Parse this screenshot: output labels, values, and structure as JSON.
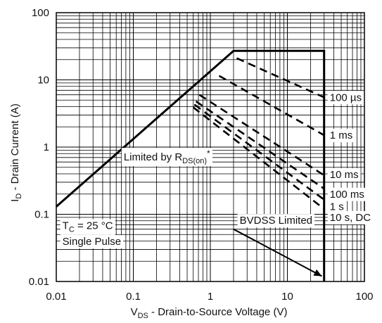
{
  "chart_data": {
    "type": "line",
    "title": "",
    "xlabel": {
      "main": "V",
      "sub": "DS",
      "rest": " - Drain-to-Source Voltage (V)"
    },
    "ylabel": {
      "main": "I",
      "sub": "D",
      "rest": " - Drain Current (A)"
    },
    "x_scale": "log",
    "y_scale": "log",
    "xlim": [
      0.01,
      100
    ],
    "ylim": [
      0.01,
      100
    ],
    "grid": true,
    "x_ticks": [
      {
        "value": 0.01,
        "label": "0.01"
      },
      {
        "value": 0.1,
        "label": "0.1"
      },
      {
        "value": 1,
        "label": "1"
      },
      {
        "value": 10,
        "label": "10"
      },
      {
        "value": 100,
        "label": "100"
      }
    ],
    "y_ticks": [
      {
        "value": 0.01,
        "label": "0.01"
      },
      {
        "value": 0.1,
        "label": "0.1"
      },
      {
        "value": 1,
        "label": "1"
      },
      {
        "value": 10,
        "label": "10"
      },
      {
        "value": 100,
        "label": "100"
      }
    ],
    "soa_boundary": {
      "style": "solid",
      "points": [
        [
          0.01,
          0.13
        ],
        [
          2.0,
          27
        ],
        [
          30,
          27
        ],
        [
          30,
          0.01
        ]
      ]
    },
    "pulse_limits": [
      {
        "name": "100 µs",
        "points": [
          [
            2.2,
            21
          ],
          [
            30,
            5.5
          ]
        ]
      },
      {
        "name": "1 ms",
        "points": [
          [
            1.3,
            11.5
          ],
          [
            30,
            1.5
          ]
        ]
      },
      {
        "name": "10 ms",
        "points": [
          [
            0.72,
            6.0
          ],
          [
            30,
            0.38
          ]
        ]
      },
      {
        "name": "100 ms",
        "points": [
          [
            0.65,
            4.8
          ],
          [
            30,
            0.24
          ]
        ]
      },
      {
        "name": "1 s",
        "points": [
          [
            0.62,
            4.3
          ],
          [
            30,
            0.165
          ]
        ]
      },
      {
        "name": "10 s, DC",
        "points": [
          [
            0.6,
            3.9
          ],
          [
            30,
            0.12
          ]
        ]
      }
    ],
    "pulse_label_positions": [
      {
        "name": "100 µs",
        "y": 5.5
      },
      {
        "name": "1 ms",
        "y": 1.5
      },
      {
        "name": "10 ms",
        "y": 0.39
      },
      {
        "name": "100 ms",
        "y": 0.2
      },
      {
        "name": "1 s",
        "y": 0.13
      },
      {
        "name": "10 s, DC",
        "y": 0.09
      }
    ],
    "annotations": {
      "rds_label": {
        "main": "Limited by R",
        "sub": "DS(on)",
        "sup": "*",
        "x": 0.075,
        "y": 0.63
      },
      "tc_label": {
        "main": "T",
        "sub": "C",
        "rest": " = 25 °C",
        "x": 0.012,
        "y": 0.06
      },
      "pulse_label": {
        "text": "Single Pulse",
        "x": 0.012,
        "y": 0.035
      },
      "bvdss_label": {
        "text": "BVDSS Limited",
        "x": 2.4,
        "y": 0.072
      },
      "bvdss_arrow": {
        "from": [
          2.0,
          0.06
        ],
        "to": [
          28,
          0.012
        ]
      }
    }
  }
}
